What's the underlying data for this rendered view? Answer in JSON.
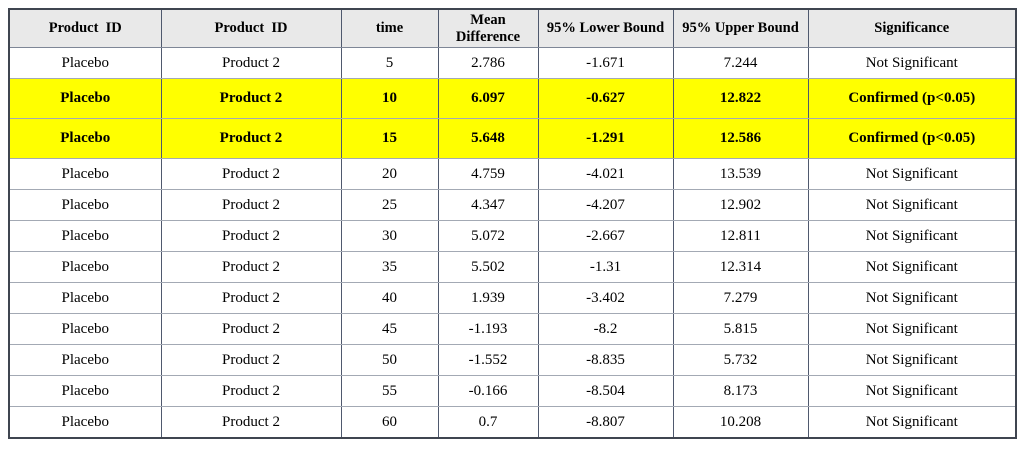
{
  "table": {
    "columns": [
      "Product  ID",
      "Product  ID",
      "time",
      "Mean Difference",
      "95% Lower Bound",
      "95% Upper Bound",
      "Significance"
    ],
    "rows": [
      {
        "highlight": false,
        "cells": [
          "Placebo",
          "Product 2",
          "5",
          "2.786",
          "-1.671",
          "7.244",
          "Not Significant"
        ]
      },
      {
        "highlight": true,
        "cells": [
          "Placebo",
          "Product 2",
          "10",
          "6.097",
          "-0.627",
          "12.822",
          "Confirmed (p<0.05)"
        ]
      },
      {
        "highlight": true,
        "cells": [
          "Placebo",
          "Product 2",
          "15",
          "5.648",
          "-1.291",
          "12.586",
          "Confirmed (p<0.05)"
        ]
      },
      {
        "highlight": false,
        "cells": [
          "Placebo",
          "Product 2",
          "20",
          "4.759",
          "-4.021",
          "13.539",
          "Not Significant"
        ]
      },
      {
        "highlight": false,
        "cells": [
          "Placebo",
          "Product 2",
          "25",
          "4.347",
          "-4.207",
          "12.902",
          "Not Significant"
        ]
      },
      {
        "highlight": false,
        "cells": [
          "Placebo",
          "Product 2",
          "30",
          "5.072",
          "-2.667",
          "12.811",
          "Not Significant"
        ]
      },
      {
        "highlight": false,
        "cells": [
          "Placebo",
          "Product 2",
          "35",
          "5.502",
          "-1.31",
          "12.314",
          "Not Significant"
        ]
      },
      {
        "highlight": false,
        "cells": [
          "Placebo",
          "Product 2",
          "40",
          "1.939",
          "-3.402",
          "7.279",
          "Not Significant"
        ]
      },
      {
        "highlight": false,
        "cells": [
          "Placebo",
          "Product 2",
          "45",
          "-1.193",
          "-8.2",
          "5.815",
          "Not Significant"
        ]
      },
      {
        "highlight": false,
        "cells": [
          "Placebo",
          "Product 2",
          "50",
          "-1.552",
          "-8.835",
          "5.732",
          "Not Significant"
        ]
      },
      {
        "highlight": false,
        "cells": [
          "Placebo",
          "Product 2",
          "55",
          "-0.166",
          "-8.504",
          "8.173",
          "Not Significant"
        ]
      },
      {
        "highlight": false,
        "cells": [
          "Placebo",
          "Product 2",
          "60",
          "0.7",
          "-8.807",
          "10.208",
          "Not Significant"
        ]
      }
    ]
  },
  "colors": {
    "header_bg": "#e9e9e9",
    "highlight_bg": "#ffff00",
    "row_bg": "#ffffff",
    "outer_border": "#3f4550",
    "vertical_border": "#4f596e",
    "horizontal_border": "#a3a9b4",
    "text": "#000000"
  }
}
